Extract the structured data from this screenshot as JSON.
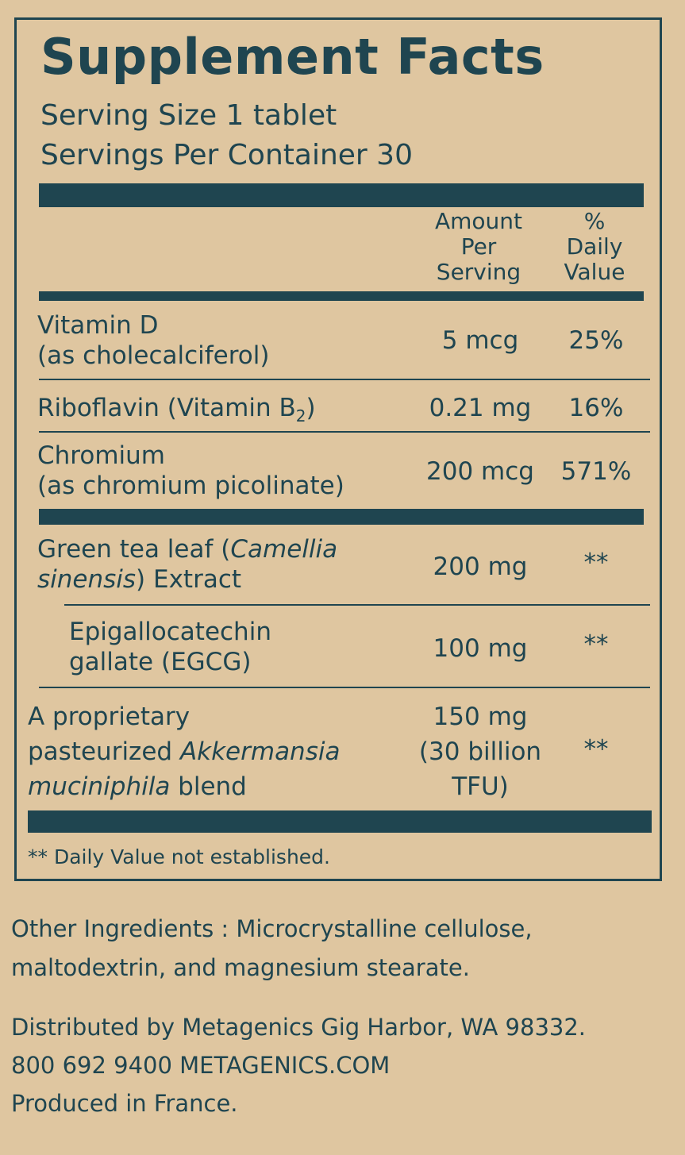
{
  "title": "Supplement Facts",
  "serving_size": "Serving Size 1 tablet",
  "servings_per_container": "Servings Per Container 30",
  "header": {
    "amount": [
      "Amount",
      "Per",
      "Serving"
    ],
    "daily_value": [
      "%",
      "Daily",
      "Value"
    ]
  },
  "rows": [
    {
      "name": [
        "Vitamin D",
        "(as cholecalciferol)"
      ],
      "amount": "5 mcg",
      "dv": "25%"
    },
    {
      "name_pre": "Riboflavin (Vitamin B",
      "name_sub": "2",
      "name_post": ")",
      "amount": "0.21 mg",
      "dv": "16%"
    },
    {
      "name": [
        "Chromium",
        "(as chromium picolinate)"
      ],
      "amount": "200 mcg",
      "dv": "571%"
    },
    {
      "name_a": "Green tea leaf (",
      "name_i1": "Camellia",
      "name_i2": "sinensis",
      "name_b": ") Extract",
      "amount": "200 mg",
      "dv": "**"
    },
    {
      "name": [
        "Epigallocatechin",
        "gallate (EGCG)"
      ],
      "amount": "100 mg",
      "dv": "**"
    },
    {
      "name_1": "A proprietary",
      "name_2a": "pasteurized ",
      "name_2i": "Akkermansia",
      "name_3i": "muciniphila",
      "name_3b": " blend",
      "amount": [
        "150 mg",
        "(30 billion",
        "TFU)"
      ],
      "dv": "**"
    }
  ],
  "footnote": "** Daily Value not established.",
  "other_ingredients": [
    "Other Ingredients : Microcrystalline cellulose,",
    "maltodextrin, and magnesium stearate."
  ],
  "distributor": [
    "Distributed by Metagenics Gig Harbor, WA 98332.",
    "800 692 9400 METAGENICS.COM",
    "Produced in France."
  ],
  "colors": {
    "ink": "#1f4550",
    "background": "#dfc6a0"
  }
}
